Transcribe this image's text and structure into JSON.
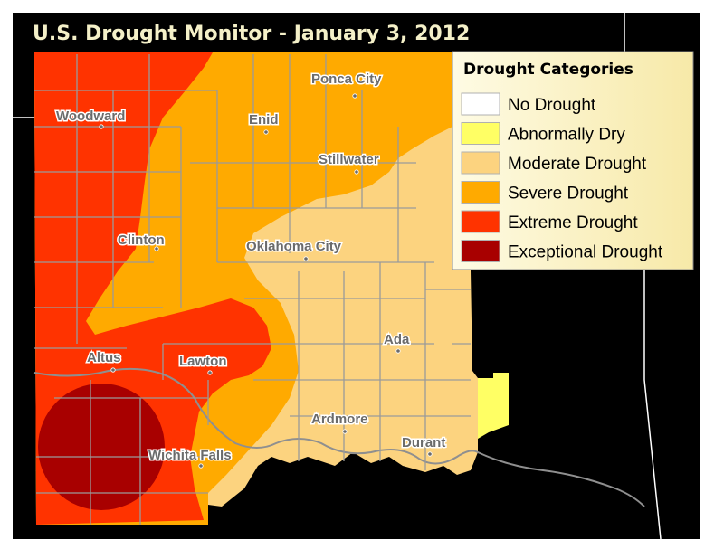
{
  "title": "U.S. Drought Monitor - January 3, 2012",
  "legend": {
    "title": "Drought Categories",
    "items": [
      {
        "label": "No Drought",
        "color": "#ffffff"
      },
      {
        "label": "Abnormally Dry",
        "color": "#ffff64"
      },
      {
        "label": "Moderate Drought",
        "color": "#fcd37f"
      },
      {
        "label": "Severe Drought",
        "color": "#ffaa00"
      },
      {
        "label": "Extreme Drought",
        "color": "#ff3300"
      },
      {
        "label": "Exceptional Drought",
        "color": "#a80000"
      }
    ]
  },
  "cities": [
    {
      "name": "Ponca City"
    },
    {
      "name": "Woodward"
    },
    {
      "name": "Enid"
    },
    {
      "name": "Stillwater"
    },
    {
      "name": "Clinton"
    },
    {
      "name": "Oklahoma City"
    },
    {
      "name": "Ada"
    },
    {
      "name": "Altus"
    },
    {
      "name": "Lawton"
    },
    {
      "name": "Ardmore"
    },
    {
      "name": "Durant"
    },
    {
      "name": "Wichita Falls"
    }
  ],
  "colors": {
    "background": "#000000",
    "title_band": "#000000",
    "title_text": "#f4f0c8",
    "legend_background": "#fdf8d0"
  }
}
